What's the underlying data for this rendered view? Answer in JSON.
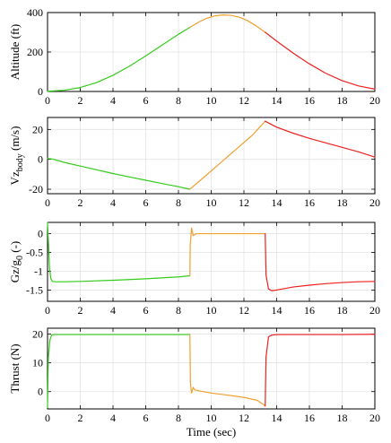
{
  "colors": {
    "phase1": "#33cc1a",
    "phase2": "#f0a030",
    "phase3": "#ee2020"
  },
  "chart_data": [
    {
      "type": "line",
      "ylabel": "Altitude (ft)",
      "xlabel": "",
      "xlim": [
        0,
        20
      ],
      "ylim": [
        0,
        400
      ],
      "xticks": [
        0,
        2,
        4,
        6,
        8,
        10,
        12,
        14,
        16,
        18,
        20
      ],
      "yticks": [
        0,
        200,
        400
      ],
      "ytick_labels": [
        "0",
        "200",
        "400"
      ],
      "grid": true,
      "series": [
        {
          "color_key": "phase1",
          "x": [
            0,
            1,
            2,
            3,
            4,
            5,
            6,
            7,
            8,
            8.7
          ],
          "y": [
            1,
            6,
            20,
            45,
            82,
            128,
            180,
            235,
            290,
            325
          ]
        },
        {
          "color_key": "phase2",
          "x": [
            8.7,
            9.2,
            9.7,
            10.2,
            10.7,
            11.2,
            11.7,
            12.2,
            12.7,
            13.3
          ],
          "y": [
            325,
            350,
            370,
            383,
            388,
            386,
            377,
            360,
            335,
            300
          ]
        },
        {
          "color_key": "phase3",
          "x": [
            13.3,
            14,
            15,
            16,
            17,
            18,
            19,
            20
          ],
          "y": [
            300,
            255,
            195,
            140,
            92,
            55,
            28,
            12
          ]
        }
      ]
    },
    {
      "type": "line",
      "ylabel_main": "Vz",
      "ylabel_sub": "body",
      "ylabel_unit": " (m/s)",
      "xlabel": "",
      "xlim": [
        0,
        20
      ],
      "ylim": [
        -23,
        28
      ],
      "xticks": [
        0,
        2,
        4,
        6,
        8,
        10,
        12,
        14,
        16,
        18,
        20
      ],
      "yticks": [
        -20,
        0,
        20
      ],
      "ytick_labels": [
        "-20",
        "0",
        "20"
      ],
      "grid": true,
      "series": [
        {
          "color_key": "phase1",
          "x": [
            0,
            0.3,
            1,
            2,
            3,
            4,
            5,
            6,
            7,
            8,
            8.7
          ],
          "y": [
            0.5,
            0.2,
            -2,
            -4.5,
            -7,
            -9.5,
            -11.8,
            -14,
            -16.2,
            -18.3,
            -20
          ]
        },
        {
          "color_key": "phase2",
          "x": [
            8.7,
            9.5,
            10.5,
            11.5,
            12.5,
            13.3
          ],
          "y": [
            -20,
            -12.5,
            -3,
            6.5,
            16,
            25.5
          ]
        },
        {
          "color_key": "phase3",
          "x": [
            13.3,
            14,
            15,
            16,
            17,
            18,
            19,
            20
          ],
          "y": [
            25.5,
            21.5,
            17.5,
            14,
            11,
            8,
            5,
            1.5
          ]
        }
      ]
    },
    {
      "type": "line",
      "ylabel_main": "Gz/g",
      "ylabel_sub": "0",
      "ylabel_unit": " (-)",
      "xlabel": "",
      "xlim": [
        0,
        20
      ],
      "ylim": [
        -1.8,
        0.3
      ],
      "xticks": [
        0,
        2,
        4,
        6,
        8,
        10,
        12,
        14,
        16,
        18,
        20
      ],
      "yticks": [
        -1.5,
        -1,
        -0.5,
        0
      ],
      "ytick_labels": [
        "-1.5",
        "-1",
        "-0.5",
        "0"
      ],
      "grid": true,
      "series": [
        {
          "color_key": "phase1",
          "x": [
            0,
            0.05,
            0.12,
            0.2,
            0.3,
            0.5,
            1,
            2,
            4,
            6,
            8,
            8.7
          ],
          "y": [
            0.3,
            -0.2,
            -0.9,
            -1.2,
            -1.27,
            -1.28,
            -1.28,
            -1.27,
            -1.24,
            -1.2,
            -1.15,
            -1.12
          ]
        },
        {
          "color_key": "phase2",
          "x": [
            8.7,
            8.72,
            8.8,
            8.9,
            9.1,
            9.5,
            10.5,
            11.5,
            12.5,
            13.3
          ],
          "y": [
            -1.12,
            -0.3,
            0.15,
            -0.05,
            0.0,
            0.0,
            0.0,
            0.0,
            0.0,
            0.0
          ]
        },
        {
          "color_key": "phase3",
          "x": [
            13.3,
            13.35,
            13.5,
            13.7,
            14,
            15,
            16,
            17,
            18,
            19,
            20
          ],
          "y": [
            0.0,
            -1.1,
            -1.47,
            -1.52,
            -1.5,
            -1.42,
            -1.37,
            -1.33,
            -1.3,
            -1.28,
            -1.27
          ]
        }
      ]
    },
    {
      "type": "line",
      "ylabel": "Thrust (N)",
      "xlabel": "Time (sec)",
      "xlim": [
        0,
        20
      ],
      "ylim": [
        -6,
        22
      ],
      "xticks": [
        0,
        2,
        4,
        6,
        8,
        10,
        12,
        14,
        16,
        18,
        20
      ],
      "yticks": [
        0,
        10,
        20
      ],
      "ytick_labels": [
        "0",
        "10",
        "20"
      ],
      "grid": true,
      "series": [
        {
          "color_key": "phase1",
          "x": [
            0,
            0.05,
            0.15,
            0.25,
            0.4,
            1,
            4,
            8,
            8.7
          ],
          "y": [
            -5.5,
            12,
            18,
            19.6,
            19.8,
            19.8,
            19.8,
            19.8,
            19.8
          ]
        },
        {
          "color_key": "phase2",
          "x": [
            8.7,
            8.73,
            8.8,
            8.9,
            9.0,
            9.5,
            10,
            11,
            12,
            12.8,
            13.2,
            13.3
          ],
          "y": [
            19.8,
            3,
            -0.5,
            1.5,
            0.6,
            0.0,
            -0.5,
            -1.2,
            -2.0,
            -3.0,
            -4.5,
            -5.0
          ]
        },
        {
          "color_key": "phase3",
          "x": [
            13.3,
            13.35,
            13.5,
            13.7,
            14,
            16,
            18,
            20
          ],
          "y": [
            -5.0,
            12,
            19,
            19.6,
            19.8,
            19.8,
            19.8,
            19.9
          ]
        }
      ]
    }
  ]
}
